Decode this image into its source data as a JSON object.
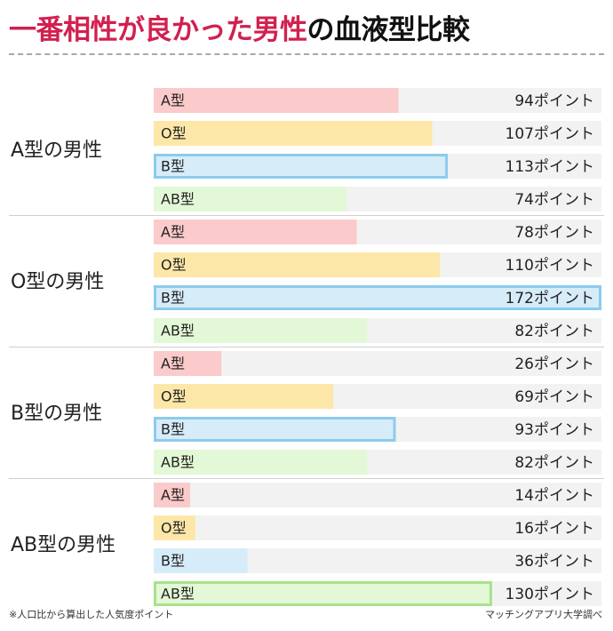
{
  "title": {
    "highlight": "一番相性が良かった男性",
    "rest": "の血液型比較"
  },
  "footnote": "※人口比から算出した人気度ポイント",
  "credit": "マッチングアプリ大学調べ",
  "colors": {
    "A": "#fbcaca",
    "O": "#fde7a8",
    "B": "#d7ecf9",
    "AB": "#e3f8d6",
    "highlight_border_B": "#8ccbed",
    "highlight_border_AB": "#a9e289",
    "track": "#f2f2f2",
    "divider": "#cfcfcf"
  },
  "chart_data": {
    "type": "bar",
    "orientation": "horizontal",
    "unit_suffix": "ポイント",
    "groups": [
      {
        "label": "A型の男性",
        "bars": [
          {
            "label": "A型",
            "type": "A",
            "value": 94,
            "highlight": false
          },
          {
            "label": "O型",
            "type": "O",
            "value": 107,
            "highlight": false
          },
          {
            "label": "B型",
            "type": "B",
            "value": 113,
            "highlight": true
          },
          {
            "label": "AB型",
            "type": "AB",
            "value": 74,
            "highlight": false
          }
        ]
      },
      {
        "label": "O型の男性",
        "bars": [
          {
            "label": "A型",
            "type": "A",
            "value": 78,
            "highlight": false
          },
          {
            "label": "O型",
            "type": "O",
            "value": 110,
            "highlight": false
          },
          {
            "label": "B型",
            "type": "B",
            "value": 172,
            "highlight": true
          },
          {
            "label": "AB型",
            "type": "AB",
            "value": 82,
            "highlight": false
          }
        ]
      },
      {
        "label": "B型の男性",
        "bars": [
          {
            "label": "A型",
            "type": "A",
            "value": 26,
            "highlight": false
          },
          {
            "label": "O型",
            "type": "O",
            "value": 69,
            "highlight": false
          },
          {
            "label": "B型",
            "type": "B",
            "value": 93,
            "highlight": true
          },
          {
            "label": "AB型",
            "type": "AB",
            "value": 82,
            "highlight": false
          }
        ]
      },
      {
        "label": "AB型の男性",
        "bars": [
          {
            "label": "A型",
            "type": "A",
            "value": 14,
            "highlight": false
          },
          {
            "label": "O型",
            "type": "O",
            "value": 16,
            "highlight": false
          },
          {
            "label": "B型",
            "type": "B",
            "value": 36,
            "highlight": false
          },
          {
            "label": "AB型",
            "type": "AB",
            "value": 130,
            "highlight": true
          }
        ]
      }
    ]
  }
}
